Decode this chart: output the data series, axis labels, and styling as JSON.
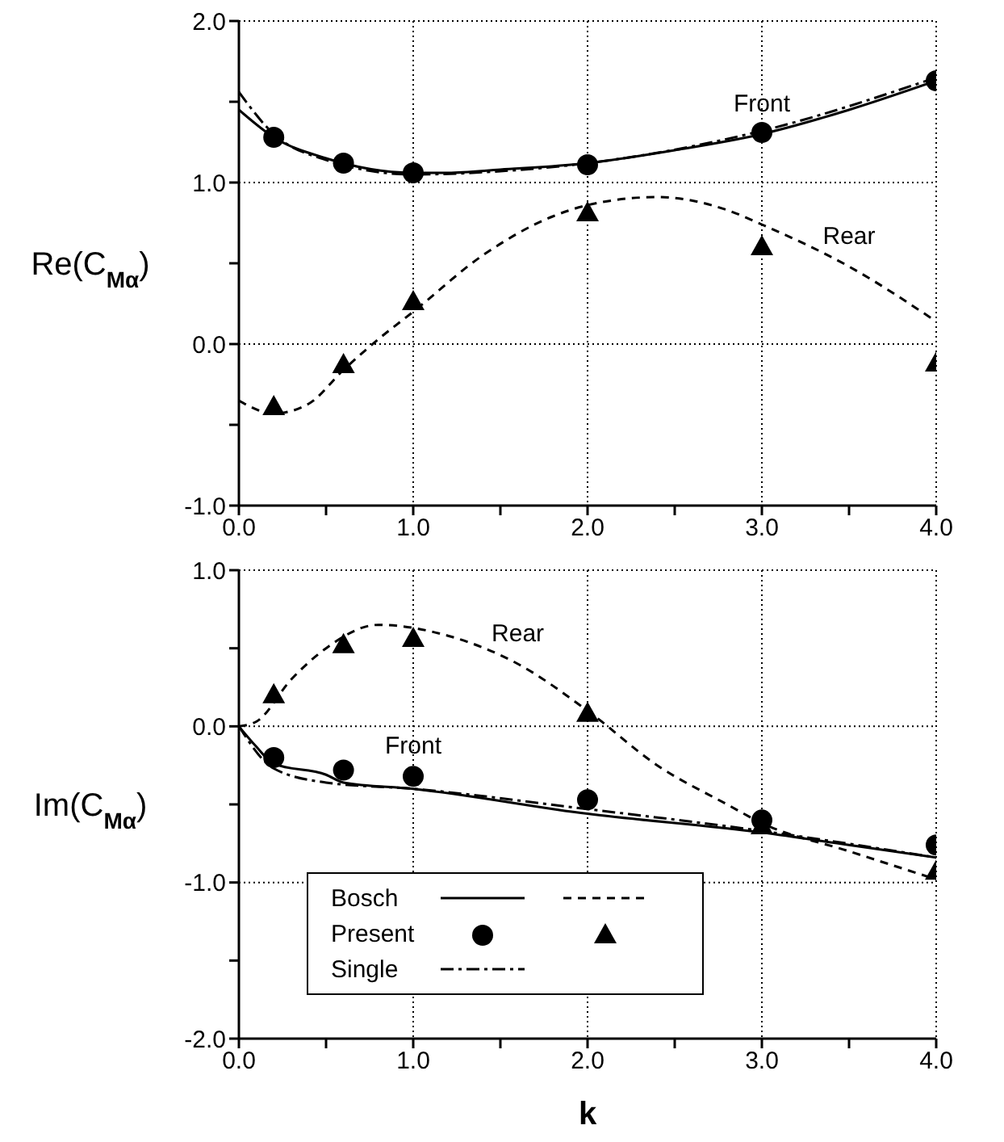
{
  "chart_data": [
    {
      "type": "line",
      "ylabel": "Re(C$_{Mα}$)",
      "xlim": [
        0,
        4
      ],
      "ylim": [
        -1,
        2
      ],
      "xticks": [
        {
          "value": 0,
          "label": "0.0"
        },
        {
          "value": 0.5,
          "label": null
        },
        {
          "value": 1,
          "label": "1.0"
        },
        {
          "value": 1.5,
          "label": null
        },
        {
          "value": 2,
          "label": "2.0"
        },
        {
          "value": 2.5,
          "label": null
        },
        {
          "value": 3,
          "label": "3.0"
        },
        {
          "value": 3.5,
          "label": null
        },
        {
          "value": 4,
          "label": "4.0"
        }
      ],
      "yticks": [
        {
          "value": -1,
          "label": "-1.0"
        },
        {
          "value": -0.5,
          "label": null
        },
        {
          "value": 0,
          "label": "0.0"
        },
        {
          "value": 0.5,
          "label": null
        },
        {
          "value": 1,
          "label": "1.0"
        },
        {
          "value": 1.5,
          "label": null
        },
        {
          "value": 2,
          "label": "2.0"
        }
      ],
      "grid": true,
      "legend": false,
      "series": [
        {
          "color": "#000000",
          "line_style": "solid",
          "marker": "none",
          "x": [
            0,
            0.2,
            0.5,
            1.0,
            1.2,
            1.5,
            2.0,
            2.5,
            3.0,
            3.5,
            4.0
          ],
          "values": [
            1.45,
            1.28,
            1.15,
            1.06,
            1.06,
            1.08,
            1.12,
            1.2,
            1.3,
            1.45,
            1.63
          ]
        },
        {
          "color": "#000000",
          "line_style": "dashed",
          "marker": "none",
          "x": [
            0,
            0.2,
            0.4,
            0.6,
            0.8,
            1.0,
            1.4,
            1.8,
            2.0,
            2.4,
            2.8,
            3.0,
            3.5,
            4.0
          ],
          "values": [
            -0.35,
            -0.43,
            -0.37,
            -0.16,
            0.03,
            0.2,
            0.55,
            0.79,
            0.86,
            0.91,
            0.83,
            0.74,
            0.48,
            0.14
          ]
        },
        {
          "type": "scatter",
          "color": "#000000",
          "marker": "circle",
          "x": [
            0.2,
            0.6,
            1.0,
            2.0,
            3.0,
            4.0
          ],
          "values": [
            1.28,
            1.12,
            1.06,
            1.11,
            1.31,
            1.63
          ]
        },
        {
          "type": "scatter",
          "color": "#000000",
          "marker": "triangle",
          "x": [
            0.2,
            0.6,
            1.0,
            2.0,
            3.0,
            4.0
          ],
          "values": [
            -0.39,
            -0.13,
            0.26,
            0.81,
            0.6,
            -0.12
          ]
        },
        {
          "color": "#000000",
          "line_style": "dashdot",
          "marker": "none",
          "x": [
            0,
            0.2,
            0.5,
            1.0,
            1.5,
            2.0,
            3.0,
            4.0
          ],
          "values": [
            1.56,
            1.3,
            1.14,
            1.05,
            1.07,
            1.12,
            1.32,
            1.65
          ]
        }
      ],
      "annotations": [
        {
          "text": "Front",
          "x": 3.0,
          "y": 1.3
        },
        {
          "text": "Rear",
          "x": 3.5,
          "y": 0.48
        }
      ]
    },
    {
      "type": "line",
      "xlabel": "k",
      "ylabel": "Im(C$_{Mα}$)",
      "xlim": [
        0,
        4
      ],
      "ylim": [
        -2,
        1
      ],
      "xticks": [
        {
          "value": 0,
          "label": "0.0"
        },
        {
          "value": 0.5,
          "label": null
        },
        {
          "value": 1,
          "label": "1.0"
        },
        {
          "value": 1.5,
          "label": null
        },
        {
          "value": 2,
          "label": "2.0"
        },
        {
          "value": 2.5,
          "label": null
        },
        {
          "value": 3,
          "label": "3.0"
        },
        {
          "value": 3.5,
          "label": null
        },
        {
          "value": 4,
          "label": "4.0"
        }
      ],
      "yticks": [
        {
          "value": -2,
          "label": "-2.0"
        },
        {
          "value": -1.5,
          "label": null
        },
        {
          "value": -1,
          "label": "-1.0"
        },
        {
          "value": -0.5,
          "label": null
        },
        {
          "value": 0,
          "label": "0.0"
        },
        {
          "value": 0.5,
          "label": null
        },
        {
          "value": 1,
          "label": "1.0"
        }
      ],
      "grid": true,
      "legend": "bottom left",
      "series": [
        {
          "name": "Bosch",
          "color": "#000000",
          "line_style": "solid",
          "marker": "none",
          "x": [
            0,
            0.1,
            0.2,
            0.5,
            0.6,
            1.0,
            2.0,
            3.0,
            3.5,
            4.0
          ],
          "values": [
            0,
            -0.13,
            -0.24,
            -0.31,
            -0.36,
            -0.4,
            -0.56,
            -0.68,
            -0.76,
            -0.84
          ]
        },
        {
          "color": "#000000",
          "line_style": "dashed",
          "marker": "none",
          "x": [
            0,
            0.1,
            0.3,
            0.5,
            0.8,
            1.2,
            1.6,
            2.0,
            2.4,
            2.8,
            3.0,
            3.5,
            4.0
          ],
          "values": [
            0,
            0.03,
            0.3,
            0.5,
            0.65,
            0.58,
            0.4,
            0.1,
            -0.25,
            -0.5,
            -0.62,
            -0.8,
            -0.98
          ]
        },
        {
          "type": "scatter",
          "name": "Present",
          "color": "#000000",
          "marker": "circle",
          "x": [
            0.2,
            0.6,
            1.0,
            2.0,
            3.0,
            4.0
          ],
          "values": [
            -0.2,
            -0.28,
            -0.32,
            -0.47,
            -0.6,
            -0.76
          ]
        },
        {
          "type": "scatter",
          "color": "#000000",
          "marker": "triangle",
          "x": [
            0.2,
            0.6,
            1.0,
            2.0,
            3.0,
            4.0
          ],
          "values": [
            0.2,
            0.52,
            0.56,
            0.08,
            -0.64,
            -0.93
          ]
        },
        {
          "name": "Single",
          "color": "#000000",
          "line_style": "dashdot",
          "marker": "none",
          "x": [
            0,
            0.2,
            0.5,
            1.0,
            2.0,
            3.0,
            4.0
          ],
          "values": [
            0,
            -0.27,
            -0.36,
            -0.4,
            -0.53,
            -0.67,
            -0.84
          ]
        }
      ],
      "annotations": [
        {
          "text": "Rear",
          "x": 1.6,
          "y": 0.4
        },
        {
          "text": "Front",
          "x": 1.0,
          "y": -0.32
        }
      ]
    }
  ]
}
